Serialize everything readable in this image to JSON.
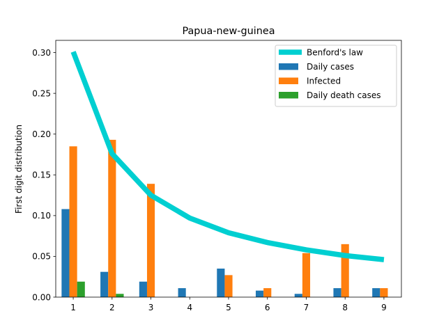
{
  "chart_data": {
    "type": "bar",
    "title": "Papua-new-guinea",
    "xlabel": "",
    "ylabel": "First digit distribution",
    "categories": [
      "1",
      "2",
      "3",
      "4",
      "5",
      "6",
      "7",
      "8",
      "9"
    ],
    "ylim": [
      0,
      0.315
    ],
    "yticks": [
      "0.00",
      "0.05",
      "0.10",
      "0.15",
      "0.20",
      "0.25",
      "0.30"
    ],
    "grid": false,
    "legend_position": "top-right",
    "series": [
      {
        "name": "Daily cases",
        "color": "#1f77b4",
        "values": [
          0.108,
          0.031,
          0.019,
          0.011,
          0.035,
          0.008,
          0.004,
          0.011,
          0.011
        ]
      },
      {
        "name": "Infected",
        "color": "#ff7f0e",
        "values": [
          0.185,
          0.193,
          0.139,
          0.0,
          0.027,
          0.011,
          0.054,
          0.065,
          0.011
        ]
      },
      {
        "name": "Daily death cases",
        "color": "#2ca02c",
        "values": [
          0.019,
          0.004,
          0.0,
          0.0,
          0.0,
          0.0,
          0.0,
          0.0,
          0.0
        ]
      }
    ],
    "line": {
      "name": "Benford's law",
      "color": "#00cfd1",
      "values": [
        0.301,
        0.176,
        0.125,
        0.097,
        0.079,
        0.067,
        0.058,
        0.051,
        0.046
      ]
    }
  }
}
